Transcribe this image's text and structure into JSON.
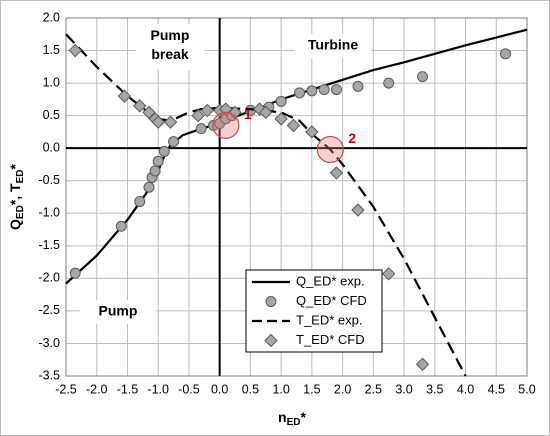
{
  "chart_data": {
    "type": "scatter",
    "x_label": [
      "n",
      "ED",
      "*"
    ],
    "y_label": [
      "Q",
      "ED",
      "*, T",
      "ED",
      "*"
    ],
    "xlim": [
      -2.5,
      5.0
    ],
    "xticks": [
      -2.5,
      {
        "value": -2,
        "label": "-2.0"
      },
      -1.5,
      {
        "value": -1,
        "label": "-1.0"
      },
      -0.5,
      {
        "value": 0,
        "label": "0.0"
      },
      0.5,
      {
        "value": 1,
        "label": "1.0"
      },
      1.5,
      {
        "value": 2,
        "label": "2.0"
      },
      2.5,
      {
        "value": 3,
        "label": "3.0"
      },
      3.5,
      {
        "value": 4,
        "label": "4.0"
      },
      4.5,
      {
        "value": 5,
        "label": "5.0"
      }
    ],
    "ylim": [
      -3.5,
      2.0
    ],
    "yticks": [
      {
        "value": 2,
        "label": "2.0"
      },
      1.5,
      {
        "value": 1,
        "label": "1.0"
      },
      0.5,
      {
        "value": 0,
        "label": "0.0"
      },
      -0.5,
      {
        "value": -1,
        "label": "-1.0"
      },
      -1.5,
      {
        "value": -2,
        "label": "-2.0"
      },
      -2.5,
      {
        "value": -3,
        "label": "-3.0"
      },
      -3.5
    ],
    "grid": true,
    "legend": "lower-right",
    "annotations": [
      "Pump break",
      "Turbine",
      "Pump"
    ],
    "markers": [
      {
        "text": "1",
        "x": 0.1,
        "y": 0.35
      },
      {
        "text": "2",
        "x": 1.8,
        "y": -0.02
      }
    ],
    "series": [
      {
        "name": "Q_ED* exp.",
        "mode": "line",
        "dash": false,
        "color": "#000000",
        "x": [
          -2.5,
          -2.0,
          -1.5,
          -1.2,
          -1.0,
          -0.9,
          -0.8,
          -0.6,
          -0.3,
          0,
          0.3,
          0.6,
          1.0,
          1.5,
          2.0,
          2.5,
          3.0,
          3.5,
          4.0,
          4.5,
          5.0
        ],
        "values": [
          -2.08,
          -1.65,
          -1.1,
          -0.7,
          -0.35,
          -0.12,
          0.05,
          0.2,
          0.3,
          0.38,
          0.5,
          0.6,
          0.75,
          0.9,
          1.05,
          1.2,
          1.32,
          1.45,
          1.58,
          1.7,
          1.82
        ]
      },
      {
        "name": "Q_ED* CFD",
        "mode": "markers",
        "marker": "circle",
        "color": "#a6a6a6",
        "x": [
          -2.35,
          -1.6,
          -1.3,
          -1.15,
          -1.1,
          -1.05,
          -1.0,
          -0.9,
          -0.75,
          -0.3,
          -0.1,
          0,
          0.1,
          0.2,
          0.5,
          0.8,
          1.0,
          1.3,
          1.5,
          1.7,
          1.9,
          2.25,
          2.75,
          3.3,
          4.65
        ],
        "values": [
          -1.92,
          -1.2,
          -0.82,
          -0.6,
          -0.45,
          -0.35,
          -0.2,
          -0.05,
          0.1,
          0.3,
          0.35,
          0.38,
          0.45,
          0.5,
          0.58,
          0.63,
          0.72,
          0.85,
          0.88,
          0.9,
          0.9,
          0.95,
          1.0,
          1.1,
          1.45
        ]
      },
      {
        "name": "T_ED* exp.",
        "mode": "line",
        "dash": true,
        "color": "#000000",
        "x": [
          -2.5,
          -2.0,
          -1.5,
          -1.2,
          -1.0,
          -0.8,
          -0.5,
          -0.3,
          0,
          0.5,
          1.0,
          1.3,
          1.5,
          1.8,
          2.0,
          2.5,
          3.0,
          3.5,
          4.0
        ],
        "values": [
          1.75,
          1.25,
          0.8,
          0.58,
          0.45,
          0.42,
          0.55,
          0.6,
          0.62,
          0.6,
          0.55,
          0.42,
          0.22,
          -0.02,
          -0.25,
          -0.9,
          -1.7,
          -2.6,
          -3.5
        ]
      },
      {
        "name": "T_ED* CFD",
        "mode": "markers",
        "marker": "diamond",
        "color": "#a6a6a6",
        "x": [
          -2.35,
          -1.55,
          -1.3,
          -1.15,
          -1.05,
          -1.0,
          -0.8,
          -0.35,
          -0.2,
          0,
          0.1,
          0.25,
          0.65,
          0.75,
          1.0,
          1.2,
          1.5,
          1.9,
          2.25,
          2.75,
          3.3
        ],
        "values": [
          1.5,
          0.8,
          0.65,
          0.55,
          0.45,
          0.4,
          0.4,
          0.5,
          0.58,
          0.58,
          0.6,
          0.55,
          0.6,
          0.55,
          0.45,
          0.35,
          0.25,
          -0.38,
          -0.95,
          -1.93,
          -3.32
        ]
      }
    ]
  }
}
